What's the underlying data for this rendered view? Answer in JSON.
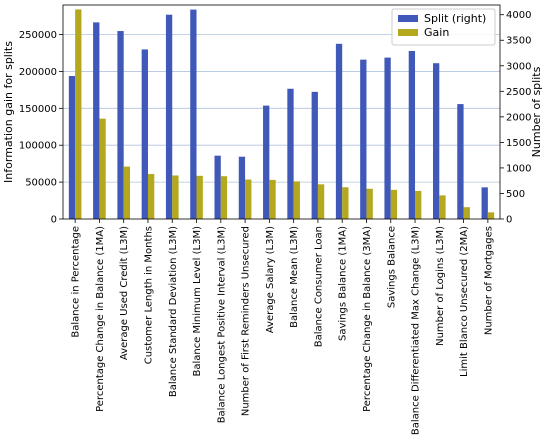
{
  "chart_data": {
    "type": "bar",
    "title": "",
    "categories": [
      "Balance in Percentage",
      "Percentage Change in Balance (1MA)",
      "Average Used Credit (L3M)",
      "Customer Length in Months",
      "Balance Standard Deviation (L3M)",
      "Balance Minimum Level (L3M)",
      "Balance Longest Positive Interval (L3M)",
      "Number of First Reminders Unsecured",
      "Average Salary (L3M)",
      "Balance Mean (L3M)",
      "Balance Consumer Loan",
      "Savings Balance (1MA)",
      "Percentage Change in Balance (3MA)",
      "Savings Balance",
      "Balance Differentiated Max Change (L3M)",
      "Number of Logins (L3M)",
      "Limit Blanco Unsecured (2MA)",
      "Number of Mortgages"
    ],
    "series": [
      {
        "name": "Split (right)",
        "axis": "right",
        "color": "#4059b8",
        "values": [
          2800,
          3850,
          3680,
          3320,
          4000,
          4100,
          1240,
          1220,
          2220,
          2550,
          2490,
          3430,
          3120,
          3160,
          3290,
          3050,
          2250,
          620
        ]
      },
      {
        "name": "Gain",
        "axis": "left",
        "color": "#b3a81e",
        "values": [
          284000,
          136000,
          71000,
          61000,
          59000,
          58500,
          58000,
          53500,
          53000,
          51000,
          47000,
          43000,
          41000,
          39500,
          38000,
          32000,
          16000,
          9000
        ]
      }
    ],
    "y_left": {
      "label": "Information gain for splits",
      "ylim": [
        0,
        290000
      ],
      "ticks": [
        "0",
        "50000",
        "100000",
        "150000",
        "200000",
        "250000"
      ],
      "tick_values": [
        0,
        50000,
        100000,
        150000,
        200000,
        250000
      ]
    },
    "y_right": {
      "label": "Number of splits",
      "ylim": [
        0,
        4190
      ],
      "ticks": [
        "0",
        "500",
        "1000",
        "1500",
        "2000",
        "2500",
        "3000",
        "3500",
        "4000"
      ],
      "tick_values": [
        0,
        500,
        1000,
        1500,
        2000,
        2500,
        3000,
        3500,
        4000
      ]
    },
    "grid": true,
    "legend": "top-right"
  }
}
